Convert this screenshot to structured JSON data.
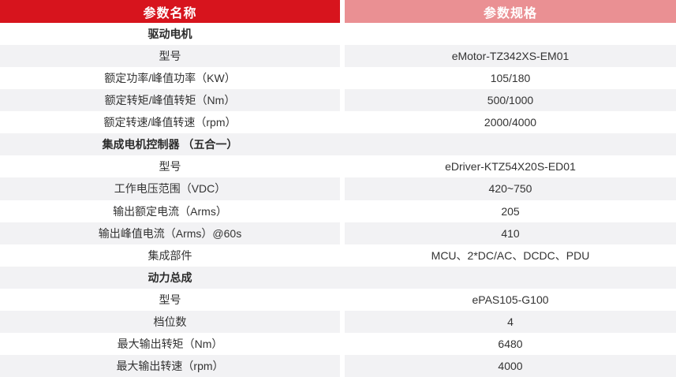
{
  "table": {
    "header": {
      "name_col": "参数名称",
      "spec_col": "参数规格"
    },
    "colors": {
      "header_red": "#d7141d",
      "header_pink": "#ea9093",
      "row_gray": "#f2f2f4",
      "row_white": "#ffffff",
      "text": "#333333",
      "header_text": "#ffffff"
    },
    "rows": [
      {
        "type": "section",
        "shade": "white",
        "label": "驱动电机",
        "value": ""
      },
      {
        "type": "data",
        "shade": "gray",
        "label": "型号",
        "value": "eMotor-TZ342XS-EM01"
      },
      {
        "type": "data",
        "shade": "white",
        "label": "额定功率/峰值功率（KW）",
        "value": "105/180"
      },
      {
        "type": "data",
        "shade": "gray",
        "label": "额定转矩/峰值转矩（Nm）",
        "value": "500/1000"
      },
      {
        "type": "data",
        "shade": "white",
        "label": "额定转速/峰值转速（rpm）",
        "value": "2000/4000"
      },
      {
        "type": "section",
        "shade": "gray",
        "label": "集成电机控制器 （五合一）",
        "value": ""
      },
      {
        "type": "data",
        "shade": "white",
        "label": "型号",
        "value": "eDriver-KTZ54X20S-ED01"
      },
      {
        "type": "data",
        "shade": "gray",
        "label": "工作电压范围（VDC）",
        "value": "420~750"
      },
      {
        "type": "data",
        "shade": "white",
        "label": "输出额定电流（Arms）",
        "value": "205"
      },
      {
        "type": "data",
        "shade": "gray",
        "label": "输出峰值电流（Arms）@60s",
        "value": "410"
      },
      {
        "type": "data",
        "shade": "white",
        "label": "集成部件",
        "value": "MCU、2*DC/AC、DCDC、PDU"
      },
      {
        "type": "section",
        "shade": "gray",
        "label": "动力总成",
        "value": ""
      },
      {
        "type": "data",
        "shade": "white",
        "label": "型号",
        "value": "ePAS105-G100"
      },
      {
        "type": "data",
        "shade": "gray",
        "label": "档位数",
        "value": "4"
      },
      {
        "type": "data",
        "shade": "white",
        "label": "最大输出转矩（Nm）",
        "value": "6480"
      },
      {
        "type": "data",
        "shade": "gray",
        "label": "最大输出转速（rpm）",
        "value": "4000"
      }
    ]
  }
}
